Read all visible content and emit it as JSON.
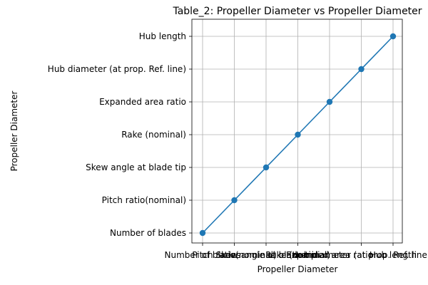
{
  "chart_data": {
    "type": "line",
    "title": "Table_2: Propeller Diameter vs Propeller Diameter",
    "xlabel": "Propeller Diameter",
    "ylabel": "Propeller Diameter",
    "categories": [
      "Number of blades",
      "Pitch ratio(nominal)",
      "Skew angle at blade tip",
      "Rake (nominal)",
      "Expanded area ratio",
      "Hub diameter (at prop. Ref. line)",
      "Hub length"
    ],
    "series": [
      {
        "values": [
          "Number of blades",
          "Pitch ratio(nominal)",
          "Skew angle at blade tip",
          "Rake (nominal)",
          "Expanded area ratio",
          "Hub diameter (at prop. Ref. line)",
          "Hub length"
        ]
      }
    ],
    "grid": true,
    "legend": "none",
    "colors": {
      "line": "#1f77b4",
      "grid": "#b0b0b0"
    }
  }
}
